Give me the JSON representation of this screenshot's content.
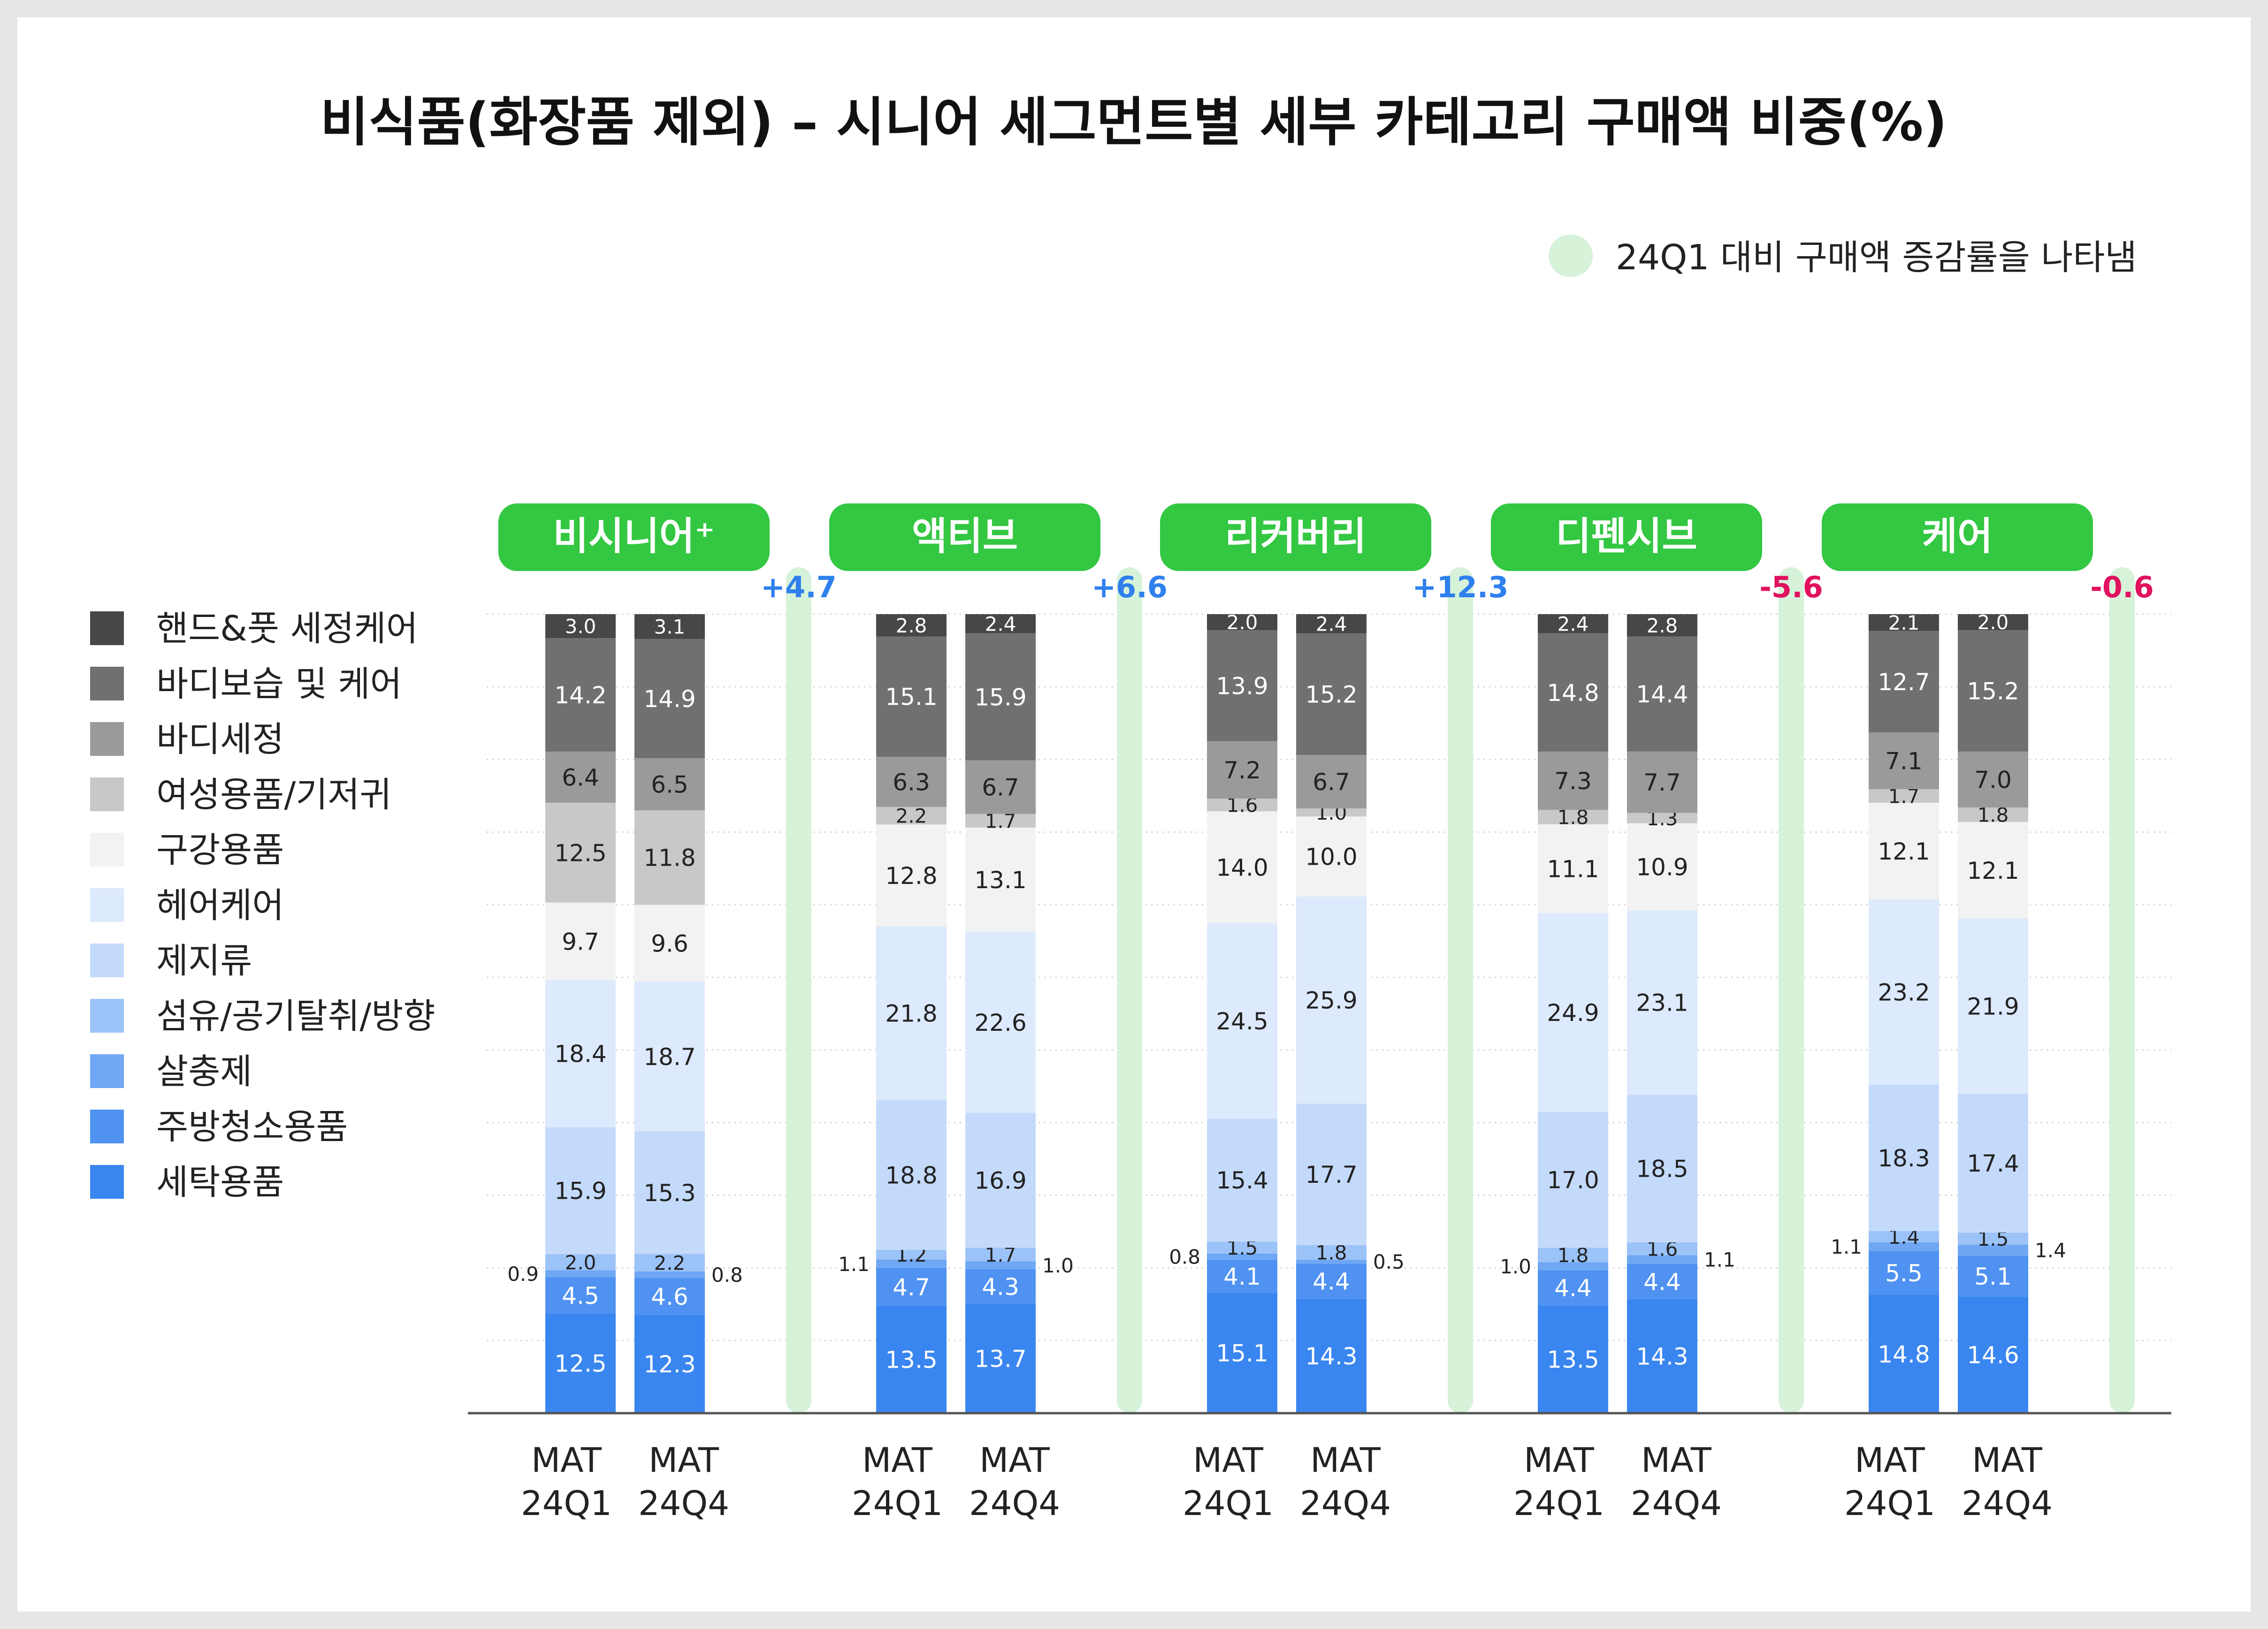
{
  "title": "비식품(화장품 제외) – 시니어 세그먼트별 세부 카테고리 구매액 비중(%)",
  "legend_note": "24Q1 대비 구매액 증감률을 나타냄",
  "colors": {
    "positive_change": "#2f80ed",
    "negative_change": "#e0115f",
    "segment_header_bg": "#33c742",
    "change_bar": "#d6f2d9"
  },
  "chart_data": {
    "type": "bar",
    "stacked": true,
    "percent_stacked": true,
    "title": "비식품(화장품 제외) – 시니어 세그먼트별 세부 카테고리 구매액 비중(%)",
    "ylim": [
      0,
      100
    ],
    "grid": true,
    "legend_position": "left",
    "period_labels": [
      "MAT\n24Q1",
      "MAT\n24Q4"
    ],
    "categories_bottom_to_top": [
      "세탁용품",
      "주방청소용품",
      "살충제",
      "섬유/공기탈취/방향",
      "제지류",
      "헤어케어",
      "구강용품",
      "여성용품/기저귀",
      "바디세정",
      "바디보습 및 케어",
      "핸드&풋 세정케어"
    ],
    "legend_top_to_bottom": [
      "핸드&풋 세정케어",
      "바디보습 및 케어",
      "바디세정",
      "여성용품/기저귀",
      "구강용품",
      "헤어케어",
      "제지류",
      "섬유/공기탈취/방향",
      "살충제",
      "주방청소용품",
      "세탁용품"
    ],
    "category_colors_bottom_to_top": [
      "#3a86f0",
      "#4f92f2",
      "#6fa7f4",
      "#9cc3f8",
      "#c4dafb",
      "#dde9fc",
      "#f2f2f2",
      "#c8c8c8",
      "#9a9a9a",
      "#707070",
      "#474747"
    ],
    "segments": [
      {
        "name": "비시니어⁺",
        "change": "+4.7",
        "change_sign": "positive",
        "bars": [
          {
            "values": [
              12.5,
              4.5,
              0.9,
              2.0,
              15.9,
              18.4,
              9.7,
              12.5,
              6.4,
              14.2,
              3.0
            ],
            "labels": [
              "12.5",
              "4.5",
              "0.9",
              "2.0",
              "15.9",
              "18.4",
              "9.7",
              "12.5",
              "6.4",
              "14.2",
              "3.0"
            ]
          },
          {
            "values": [
              12.3,
              4.6,
              0.8,
              2.2,
              15.3,
              18.7,
              9.6,
              11.8,
              6.5,
              14.9,
              3.1
            ],
            "labels": [
              "12.3",
              "4.6",
              "0.8",
              "2.2",
              "15.3",
              "18.7",
              "9.6",
              "11.8",
              "6.5",
              "14.9",
              "3.1"
            ]
          }
        ]
      },
      {
        "name": "액티브",
        "change": "+6.6",
        "change_sign": "positive",
        "bars": [
          {
            "values": [
              13.5,
              4.7,
              1.1,
              1.2,
              18.8,
              21.8,
              12.8,
              2.2,
              6.3,
              15.1,
              2.8
            ],
            "labels": [
              "13.5",
              "4.7",
              "1.1",
              "1.2",
              "18.8",
              "21.8",
              "12.8",
              "2.2",
              "6.3",
              "15.1",
              "2.8"
            ]
          },
          {
            "values": [
              13.7,
              4.3,
              1.0,
              1.7,
              16.9,
              22.6,
              13.1,
              1.7,
              6.7,
              15.9,
              2.4
            ],
            "labels": [
              "13.7",
              "4.3",
              "1.0",
              "1.7",
              "16.9",
              "22.6",
              "13.1",
              "1.7",
              "6.7",
              "15.9",
              "2.4"
            ]
          }
        ]
      },
      {
        "name": "리커버리",
        "change": "+12.3",
        "change_sign": "positive",
        "bars": [
          {
            "values": [
              15.1,
              4.1,
              0.8,
              1.5,
              15.4,
              24.5,
              14.0,
              1.6,
              7.2,
              13.9,
              2.0
            ],
            "labels": [
              "15.1",
              "4.1",
              "0.8",
              "1.5",
              "15.4",
              "24.5",
              "14.0",
              "1.6",
              "7.2",
              "13.9",
              "2.0"
            ]
          },
          {
            "values": [
              14.3,
              4.4,
              0.5,
              1.8,
              17.7,
              25.9,
              10.0,
              1.0,
              6.7,
              15.2,
              2.4
            ],
            "labels": [
              "14.3",
              "4.4",
              "0.5",
              "1.8",
              "17.7",
              "25.9",
              "10.0",
              "1.0",
              "6.7",
              "15.2",
              "2.4"
            ]
          }
        ]
      },
      {
        "name": "디펜시브",
        "change": "-5.6",
        "change_sign": "negative",
        "bars": [
          {
            "values": [
              13.5,
              4.4,
              1.0,
              1.8,
              17.0,
              24.9,
              11.1,
              1.8,
              7.3,
              14.8,
              2.4
            ],
            "labels": [
              "13.5",
              "4.4",
              "1.0",
              "1.8",
              "17.0",
              "24.9",
              "11.1",
              "1.8",
              "7.3",
              "14.8",
              "2.4"
            ]
          },
          {
            "values": [
              14.3,
              4.4,
              1.1,
              1.6,
              18.5,
              23.1,
              10.9,
              1.3,
              7.7,
              14.4,
              2.8
            ],
            "labels": [
              "14.3",
              "4.4",
              "1.1",
              "1.6",
              "18.5",
              "23.1",
              "10.9",
              "1.3",
              "7.7",
              "14.4",
              "2.8"
            ]
          }
        ]
      },
      {
        "name": "케어",
        "change": "-0.6",
        "change_sign": "negative",
        "bars": [
          {
            "values": [
              14.8,
              5.5,
              1.1,
              1.4,
              18.3,
              23.2,
              12.1,
              1.7,
              7.1,
              12.7,
              2.1
            ],
            "labels": [
              "14.8",
              "5.5",
              "1.1",
              "1.4",
              "18.3",
              "23.2",
              "12.1",
              "1.7",
              "7.1",
              "12.7",
              "2.1"
            ]
          },
          {
            "values": [
              14.6,
              5.1,
              1.4,
              1.5,
              17.4,
              21.9,
              12.1,
              1.8,
              7.0,
              15.2,
              2.0
            ],
            "labels": [
              "14.6",
              "5.1",
              "1.4",
              "1.5",
              "17.4",
              "21.9",
              "12.1",
              "1.8",
              "7.0",
              "15.2",
              "2.0"
            ]
          }
        ]
      }
    ]
  }
}
